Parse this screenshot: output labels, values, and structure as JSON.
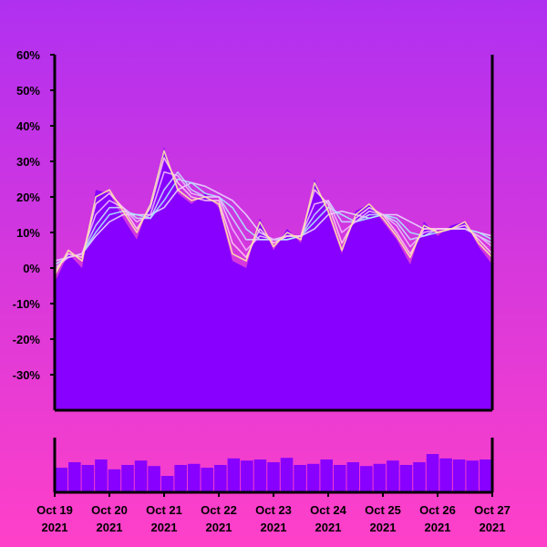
{
  "chart_data": {
    "type": "area",
    "title": "",
    "xlabel": "",
    "ylabel": "",
    "ylim": [
      -40,
      60
    ],
    "y_ticks": [
      "60%",
      "50%",
      "40%",
      "30%",
      "20%",
      "10%",
      "0%",
      "-10%",
      "-20%",
      "-30%"
    ],
    "y_tick_values": [
      60,
      50,
      40,
      30,
      20,
      10,
      0,
      -10,
      -20,
      -30
    ],
    "x_ticks": [
      {
        "line1": "Oct 19",
        "line2": "2021"
      },
      {
        "line1": "Oct 20",
        "line2": "2021"
      },
      {
        "line1": "Oct 21",
        "line2": "2021"
      },
      {
        "line1": "Oct 22",
        "line2": "2021"
      },
      {
        "line1": "Oct 23",
        "line2": "2021"
      },
      {
        "line1": "Oct 24",
        "line2": "2021"
      },
      {
        "line1": "Oct 25",
        "line2": "2021"
      },
      {
        "line1": "Oct 26",
        "line2": "2021"
      },
      {
        "line1": "Oct 27",
        "line2": "2021"
      }
    ],
    "grid": false,
    "legend": "none",
    "x": [
      "2021-10-19 00:00",
      "2021-10-19 06:00",
      "2021-10-19 12:00",
      "2021-10-19 18:00",
      "2021-10-20 00:00",
      "2021-10-20 06:00",
      "2021-10-20 12:00",
      "2021-10-20 18:00",
      "2021-10-21 00:00",
      "2021-10-21 06:00",
      "2021-10-21 12:00",
      "2021-10-21 18:00",
      "2021-10-22 00:00",
      "2021-10-22 06:00",
      "2021-10-22 12:00",
      "2021-10-22 18:00",
      "2021-10-23 00:00",
      "2021-10-23 06:00",
      "2021-10-23 12:00",
      "2021-10-23 18:00",
      "2021-10-24 00:00",
      "2021-10-24 06:00",
      "2021-10-24 12:00",
      "2021-10-24 18:00",
      "2021-10-25 00:00",
      "2021-10-25 06:00",
      "2021-10-25 12:00",
      "2021-10-25 18:00",
      "2021-10-26 00:00",
      "2021-10-26 06:00",
      "2021-10-26 12:00",
      "2021-10-26 18:00",
      "2021-10-27 00:00"
    ],
    "series": [
      {
        "color": "#ffe8a8",
        "values": [
          -2,
          5,
          2,
          20,
          22,
          16,
          10,
          18,
          33,
          22,
          19,
          20,
          18,
          4,
          2,
          13,
          6,
          10,
          8,
          24,
          16,
          5,
          15,
          18,
          14,
          9,
          3,
          12,
          10,
          11,
          13,
          7,
          3
        ]
      },
      {
        "color": "#ffc8f0",
        "values": [
          -1,
          4,
          3,
          18,
          21,
          17,
          11,
          17,
          31,
          24,
          20,
          19,
          19,
          7,
          3,
          11,
          7,
          9,
          9,
          22,
          18,
          7,
          14,
          17,
          15,
          10,
          4,
          11,
          11,
          11,
          12,
          8,
          4
        ]
      },
      {
        "color": "#f0b8ff",
        "values": [
          0,
          3,
          4,
          15,
          19,
          17,
          13,
          15,
          27,
          26,
          21,
          20,
          20,
          11,
          5,
          9,
          8,
          9,
          9,
          18,
          19,
          10,
          13,
          16,
          15,
          12,
          6,
          10,
          11,
          11,
          11,
          9,
          6
        ]
      },
      {
        "color": "#c8d8ff",
        "values": [
          1,
          3,
          4,
          12,
          17,
          17,
          14,
          14,
          22,
          27,
          22,
          20,
          20,
          14,
          8,
          8,
          8,
          9,
          9,
          15,
          19,
          13,
          13,
          15,
          15,
          13,
          8,
          9,
          11,
          11,
          11,
          9,
          7
        ]
      },
      {
        "color": "#a8e8ff",
        "values": [
          1,
          3,
          4,
          10,
          15,
          16,
          15,
          14,
          19,
          25,
          24,
          21,
          20,
          17,
          11,
          8,
          8,
          8,
          9,
          13,
          17,
          15,
          13,
          14,
          15,
          14,
          10,
          9,
          10,
          11,
          11,
          10,
          8
        ]
      },
      {
        "color": "#e8d8ff",
        "values": [
          2,
          3,
          4,
          9,
          13,
          15,
          15,
          15,
          17,
          22,
          24,
          23,
          21,
          19,
          15,
          10,
          8,
          8,
          9,
          11,
          15,
          16,
          15,
          14,
          15,
          15,
          13,
          11,
          11,
          11,
          11,
          10,
          9
        ]
      }
    ],
    "area": {
      "color": "#8800ff",
      "values": [
        -4,
        4,
        0,
        22,
        21,
        14,
        8,
        19,
        34,
        21,
        18,
        21,
        17,
        2,
        0,
        14,
        5,
        11,
        7,
        25,
        15,
        4,
        16,
        18,
        13,
        8,
        1,
        13,
        9,
        12,
        13,
        6,
        1
      ]
    },
    "volume": {
      "color": "#8800ff",
      "values": [
        0.45,
        0.55,
        0.5,
        0.6,
        0.42,
        0.5,
        0.58,
        0.48,
        0.3,
        0.5,
        0.52,
        0.45,
        0.5,
        0.62,
        0.58,
        0.6,
        0.55,
        0.63,
        0.5,
        0.52,
        0.6,
        0.5,
        0.55,
        0.48,
        0.52,
        0.58,
        0.5,
        0.55,
        0.7,
        0.62,
        0.6,
        0.58,
        0.6
      ]
    },
    "colors": {
      "background_top": "#b030f0",
      "background_bottom": "#ff40c8",
      "area": "#8800ff",
      "axis": "#000000"
    }
  }
}
